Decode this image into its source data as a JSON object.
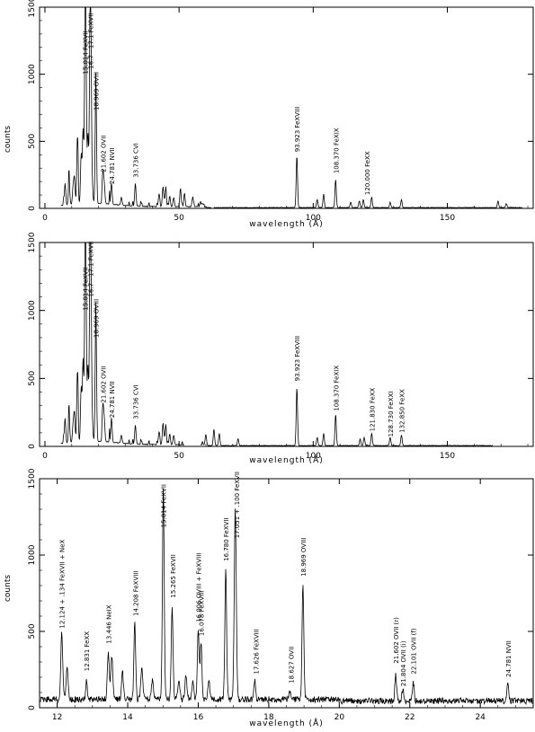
{
  "chart_data": [
    {
      "type": "line",
      "panel": "top",
      "xlabel": "wavelength (Å)",
      "ylabel": "counts",
      "xlim": [
        -2,
        182
      ],
      "ylim": [
        0,
        1500
      ],
      "xticks": [
        0,
        50,
        100,
        150
      ],
      "yticks": [
        0,
        500,
        1000,
        1500
      ],
      "xtick_labels": [
        "0",
        "50",
        "100",
        "150"
      ],
      "ytick_labels": [
        "0",
        "500",
        "1000",
        "1500"
      ],
      "grid": false,
      "segments": [
        [
          6,
          62
        ],
        [
          63,
          178
        ]
      ],
      "peaks": [
        [
          7.5,
          160
        ],
        [
          9.0,
          180
        ],
        [
          10.5,
          130
        ],
        [
          11.0,
          190
        ],
        [
          12.1,
          500
        ],
        [
          13.5,
          370
        ],
        [
          14.2,
          550
        ],
        [
          15.01,
          1500
        ],
        [
          15.26,
          650
        ],
        [
          16.0,
          520
        ],
        [
          16.78,
          900
        ],
        [
          17.05,
          1240
        ],
        [
          17.6,
          150
        ],
        [
          18.97,
          900
        ],
        [
          21.6,
          230
        ],
        [
          22.1,
          140
        ],
        [
          24.78,
          160
        ],
        [
          28.5,
          60
        ],
        [
          33.7,
          170
        ],
        [
          42.5,
          90
        ],
        [
          44.0,
          150
        ],
        [
          45.0,
          130
        ],
        [
          46.5,
          80
        ],
        [
          48.0,
          70
        ],
        [
          50.5,
          140
        ],
        [
          52.0,
          100
        ],
        [
          55.0,
          60
        ],
        [
          58.0,
          40
        ],
        [
          93.92,
          390
        ],
        [
          101.5,
          60
        ],
        [
          103.9,
          100
        ],
        [
          108.37,
          210
        ],
        [
          114.0,
          40
        ],
        [
          117.2,
          50
        ],
        [
          118.7,
          60
        ],
        [
          121.8,
          80
        ],
        [
          128.7,
          40
        ],
        [
          132.9,
          60
        ],
        [
          168.9,
          50
        ],
        [
          172.0,
          30
        ]
      ],
      "annotations": [
        {
          "text": "15.014 FeXVII",
          "x": 15.01,
          "y": 1000
        },
        {
          "text": "16.7 - 17.1 FeXVII",
          "x": 17.0,
          "y": 1040
        },
        {
          "text": "18.969 OVIII",
          "x": 18.97,
          "y": 730
        },
        {
          "text": "21.602 OVII",
          "x": 21.6,
          "y": 270
        },
        {
          "text": "24.781 NVII",
          "x": 24.78,
          "y": 180
        },
        {
          "text": "33.736 CVI",
          "x": 33.74,
          "y": 230
        },
        {
          "text": "93.923 FeXVIII",
          "x": 93.92,
          "y": 420
        },
        {
          "text": "108.370 FeXIX",
          "x": 108.37,
          "y": 260
        },
        {
          "text": "120.000 FeXX",
          "x": 120.0,
          "y": 100
        }
      ]
    },
    {
      "type": "line",
      "panel": "middle",
      "xlabel": "wavelength (Å)",
      "ylabel": "",
      "xlim": [
        -2,
        182
      ],
      "ylim": [
        0,
        1500
      ],
      "xticks": [
        0,
        50,
        100,
        150
      ],
      "yticks": [
        0,
        500,
        1000,
        1500
      ],
      "xtick_labels": [
        "0",
        "50",
        "100",
        "150"
      ],
      "ytick_labels": [
        "0",
        "500",
        "1000",
        "1500"
      ],
      "grid": false,
      "segments": [
        [
          6,
          52
        ],
        [
          58,
          167
        ]
      ],
      "peaks": [
        [
          7.5,
          180
        ],
        [
          9.0,
          200
        ],
        [
          10.5,
          130
        ],
        [
          11.0,
          210
        ],
        [
          12.1,
          520
        ],
        [
          13.5,
          400
        ],
        [
          14.2,
          600
        ],
        [
          15.01,
          1400
        ],
        [
          15.26,
          700
        ],
        [
          16.0,
          560
        ],
        [
          16.78,
          950
        ],
        [
          17.05,
          1250
        ],
        [
          17.6,
          170
        ],
        [
          18.97,
          950
        ],
        [
          21.6,
          260
        ],
        [
          22.1,
          160
        ],
        [
          24.78,
          180
        ],
        [
          28.5,
          60
        ],
        [
          33.7,
          140
        ],
        [
          42.5,
          90
        ],
        [
          44.0,
          160
        ],
        [
          45.0,
          130
        ],
        [
          46.5,
          80
        ],
        [
          48.0,
          70
        ],
        [
          60.0,
          80
        ],
        [
          63.0,
          120
        ],
        [
          65.0,
          90
        ],
        [
          72.0,
          50
        ],
        [
          93.92,
          430
        ],
        [
          101.5,
          60
        ],
        [
          103.9,
          90
        ],
        [
          108.37,
          230
        ],
        [
          117.5,
          50
        ],
        [
          119.0,
          60
        ],
        [
          121.8,
          90
        ],
        [
          128.7,
          60
        ],
        [
          132.9,
          80
        ]
      ],
      "annotations": [
        {
          "text": "15.014 FeXVII",
          "x": 15.01,
          "y": 1000
        },
        {
          "text": "16.7 - 17.1 FeXVII",
          "x": 17.0,
          "y": 1100
        },
        {
          "text": "18.969 OVIII",
          "x": 18.97,
          "y": 800
        },
        {
          "text": "21.602 OVII",
          "x": 21.6,
          "y": 320
        },
        {
          "text": "24.781 NVII",
          "x": 24.78,
          "y": 210
        },
        {
          "text": "33.736 CVI",
          "x": 33.74,
          "y": 200
        },
        {
          "text": "93.923 FeXVIII",
          "x": 93.92,
          "y": 480
        },
        {
          "text": "108.370 FeXIX",
          "x": 108.37,
          "y": 260
        },
        {
          "text": "121.830 FeXX",
          "x": 121.83,
          "y": 110
        },
        {
          "text": "128.730 FeXXI",
          "x": 128.73,
          "y": 70
        },
        {
          "text": "132.850 FeXX",
          "x": 132.85,
          "y": 100
        }
      ]
    },
    {
      "type": "line",
      "panel": "bottom",
      "xlabel": "wavelength (Å)",
      "ylabel": "counts",
      "xlim": [
        11.5,
        25.5
      ],
      "ylim": [
        0,
        1500
      ],
      "xticks": [
        12,
        14,
        16,
        18,
        20,
        22,
        24
      ],
      "yticks": [
        0,
        500,
        1000,
        1500
      ],
      "xtick_labels": [
        "12",
        "14",
        "16",
        "18",
        "20",
        "22",
        "24"
      ],
      "ytick_labels": [
        "0",
        "500",
        "1000",
        "1500"
      ],
      "grid": false,
      "baseline": 50,
      "peaks": [
        [
          12.13,
          430,
          0.04
        ],
        [
          12.28,
          220,
          0.04
        ],
        [
          12.83,
          120,
          0.03
        ],
        [
          13.45,
          300,
          0.04
        ],
        [
          13.55,
          280,
          0.04
        ],
        [
          13.85,
          180,
          0.04
        ],
        [
          14.2,
          500,
          0.035
        ],
        [
          14.4,
          200,
          0.04
        ],
        [
          14.7,
          120,
          0.04
        ],
        [
          15.01,
          1380,
          0.035
        ],
        [
          15.26,
          620,
          0.035
        ],
        [
          15.45,
          130,
          0.04
        ],
        [
          15.65,
          150,
          0.04
        ],
        [
          15.85,
          110,
          0.04
        ],
        [
          16.0,
          450,
          0.035
        ],
        [
          16.08,
          380,
          0.035
        ],
        [
          16.3,
          120,
          0.04
        ],
        [
          16.78,
          850,
          0.035
        ],
        [
          17.05,
          1250,
          0.04
        ],
        [
          17.6,
          120,
          0.035
        ],
        [
          18.6,
          50,
          0.04
        ],
        [
          18.97,
          760,
          0.035
        ],
        [
          21.6,
          170,
          0.035
        ],
        [
          21.8,
          80,
          0.03
        ],
        [
          22.1,
          120,
          0.035
        ],
        [
          24.78,
          110,
          0.035
        ]
      ],
      "annotations": [
        {
          "text": "12.124 + .134 FeXVII + NeX",
          "x": 12.13,
          "y": 520
        },
        {
          "text": "12.831 FeXX",
          "x": 12.83,
          "y": 240
        },
        {
          "text": "13.446 NeIX",
          "x": 13.45,
          "y": 420
        },
        {
          "text": "14.208 FeXVIII",
          "x": 14.21,
          "y": 600
        },
        {
          "text": "15.014 FeXVII",
          "x": 15.01,
          "y": 1180
        },
        {
          "text": "15.265 FeXVII",
          "x": 15.27,
          "y": 720
        },
        {
          "text": "16.006 OVIII + FeXVIII",
          "x": 16.0,
          "y": 560
        },
        {
          "text": "16.078 FeXVIII",
          "x": 16.08,
          "y": 470
        },
        {
          "text": "16.780 FeXVII",
          "x": 16.78,
          "y": 960
        },
        {
          "text": "17.051 + .100 FeXVII",
          "x": 17.08,
          "y": 1110
        },
        {
          "text": "17.626 FeXVIII",
          "x": 17.63,
          "y": 220
        },
        {
          "text": "18.627 OVII",
          "x": 18.63,
          "y": 160
        },
        {
          "text": "18.969 OVIII",
          "x": 18.97,
          "y": 860
        },
        {
          "text": "21.602 OVII (r)",
          "x": 21.6,
          "y": 290
        },
        {
          "text": "21.804 OVII (i)",
          "x": 21.8,
          "y": 140
        },
        {
          "text": "22.101 OVII (f)",
          "x": 22.1,
          "y": 220
        },
        {
          "text": "24.781 NVII",
          "x": 24.78,
          "y": 200
        }
      ]
    }
  ]
}
